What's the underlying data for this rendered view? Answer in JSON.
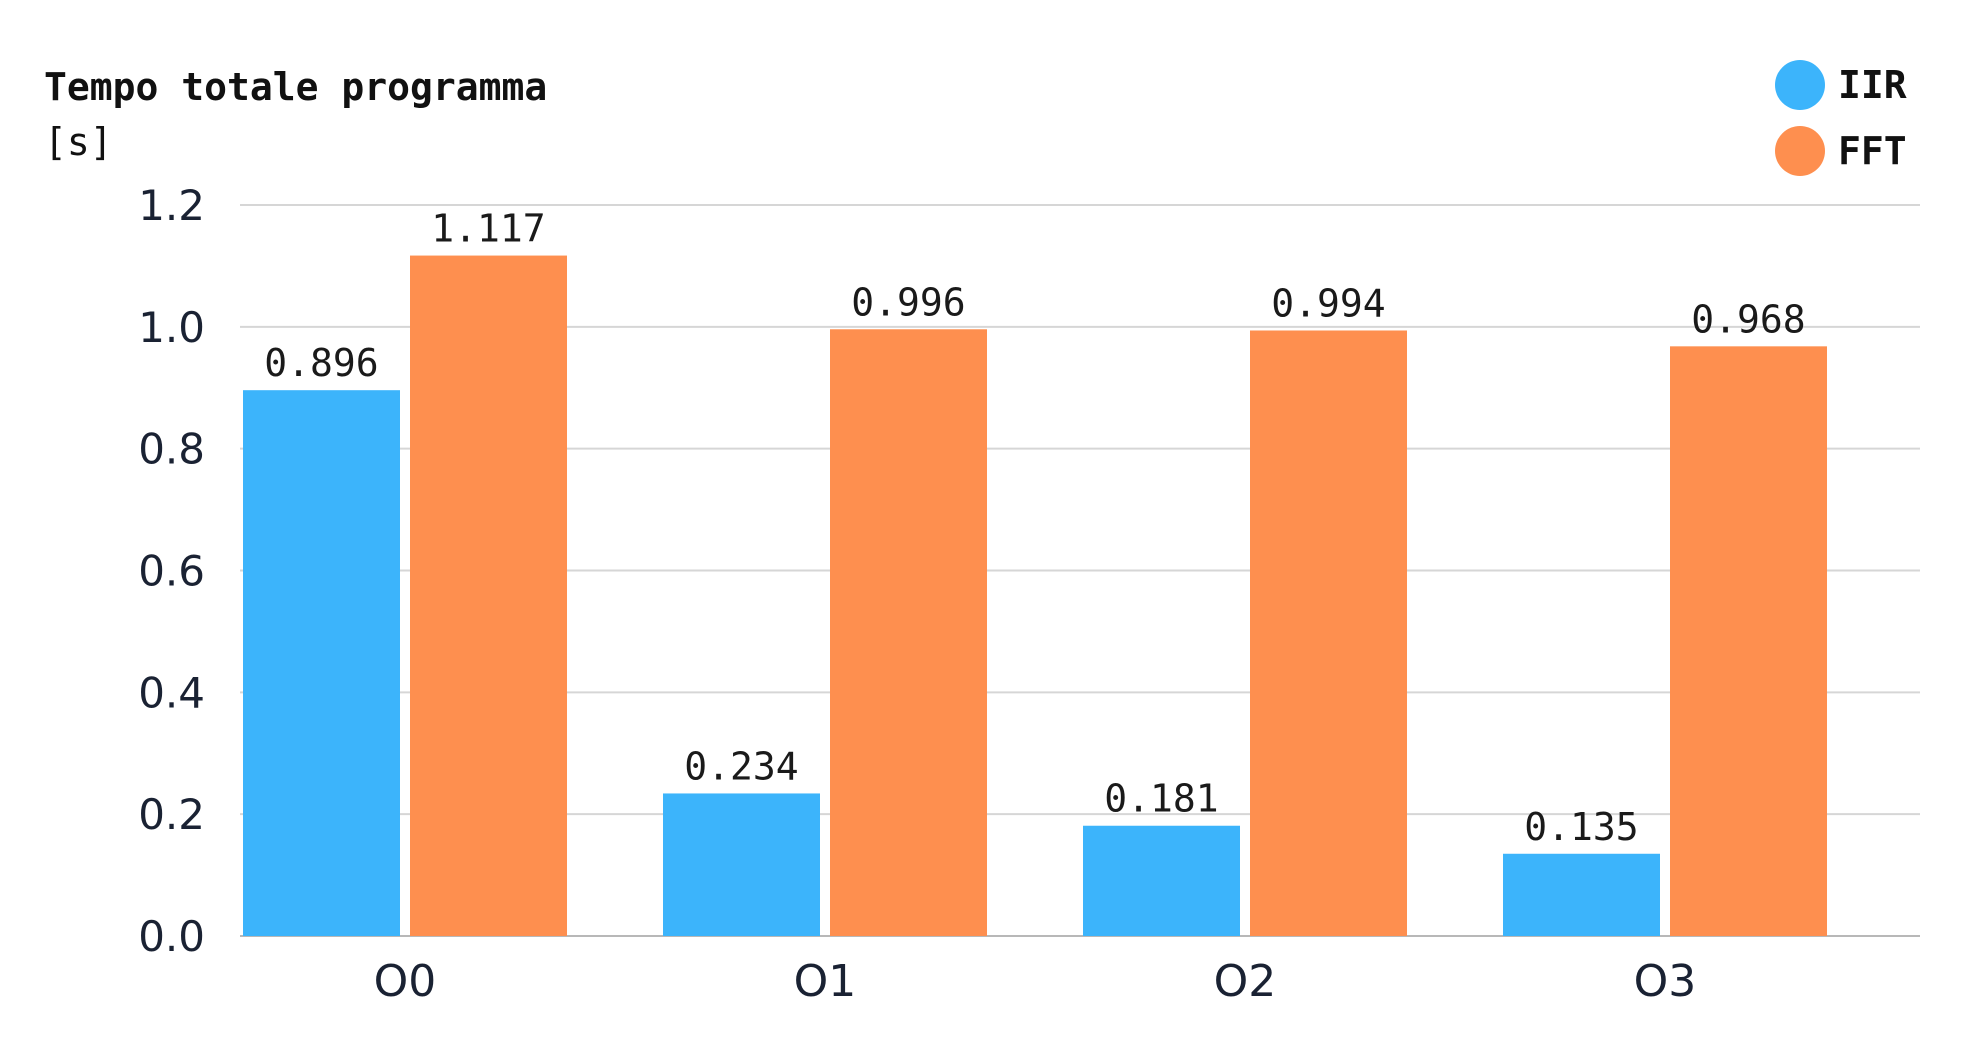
{
  "chart_data": {
    "type": "bar",
    "title": "",
    "ylabel": "Tempo totale programma",
    "ylabel_unit": "[s]",
    "xlabel": "",
    "categories": [
      "O0",
      "O1",
      "O2",
      "O3"
    ],
    "series": [
      {
        "name": "IIR",
        "color": "#3cb4fb",
        "values": [
          0.896,
          0.234,
          0.181,
          0.135
        ]
      },
      {
        "name": "FFT",
        "color": "#fe8f4f",
        "values": [
          1.117,
          0.996,
          0.994,
          0.968
        ]
      }
    ],
    "ylim": [
      0,
      1.2
    ],
    "yticks": [
      "0.0",
      "0.2",
      "0.4",
      "0.6",
      "0.8",
      "1.0",
      "1.2"
    ],
    "grid": true,
    "legend_position": "top-right"
  }
}
